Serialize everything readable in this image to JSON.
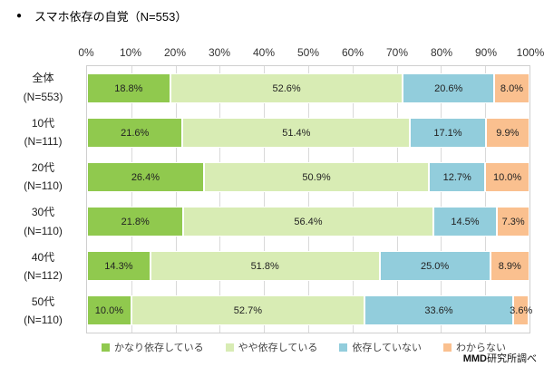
{
  "title": {
    "bullet": "●",
    "text": "スマホ依存の自覚（N=553）"
  },
  "source": {
    "bold": "MMD",
    "rest": "研究所調べ"
  },
  "colors": {
    "grid": "#D9D9D9",
    "plot_border": "#CFCFCF",
    "text": "#333333"
  },
  "chart_data": {
    "type": "bar",
    "stacked": true,
    "orientation": "horizontal",
    "title": "スマホ依存の自覚（N=553）",
    "x_ticks": [
      "0%",
      "10%",
      "20%",
      "30%",
      "40%",
      "50%",
      "60%",
      "70%",
      "80%",
      "90%",
      "100%"
    ],
    "xlim": [
      0,
      100
    ],
    "grid": true,
    "legend_position": "bottom",
    "value_label_format": "0.0%",
    "categories": [
      {
        "label": "全体",
        "n": "(N=553)"
      },
      {
        "label": "10代",
        "n": "(N=111)"
      },
      {
        "label": "20代",
        "n": "(N=110)"
      },
      {
        "label": "30代",
        "n": "(N=110)"
      },
      {
        "label": "40代",
        "n": "(N=112)"
      },
      {
        "label": "50代",
        "n": "(N=110)"
      }
    ],
    "series": [
      {
        "name": "かなり依存している",
        "color": "#90C94E",
        "values": [
          18.8,
          21.6,
          26.4,
          21.8,
          14.3,
          10.0
        ]
      },
      {
        "name": "やや依存している",
        "color": "#D8ECB4",
        "values": [
          52.6,
          51.4,
          50.9,
          56.4,
          51.8,
          52.7
        ]
      },
      {
        "name": "依存していない",
        "color": "#92CDDC",
        "values": [
          20.6,
          17.1,
          12.7,
          14.5,
          25.0,
          33.6
        ]
      },
      {
        "name": "わからない",
        "color": "#FAC08F",
        "values": [
          8.0,
          9.9,
          10.0,
          7.3,
          8.9,
          3.6
        ]
      }
    ]
  }
}
